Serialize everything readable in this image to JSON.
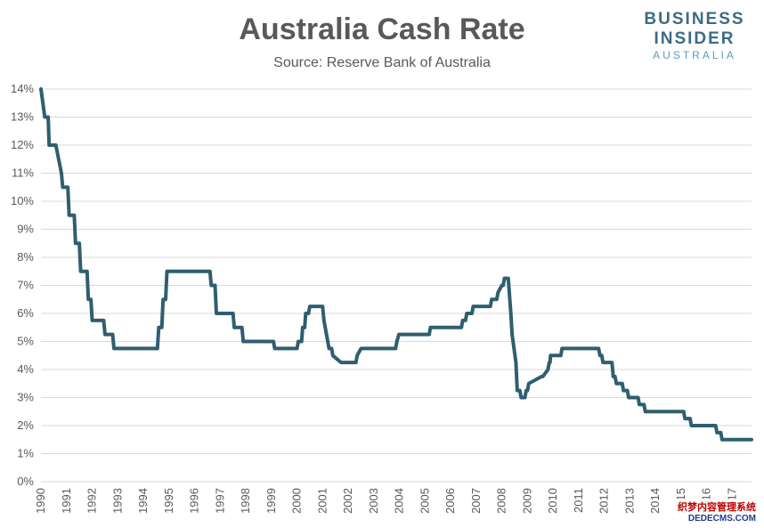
{
  "header": {
    "title": "Australia Cash Rate",
    "subtitle": "Source: Reserve Bank of Australia"
  },
  "logo": {
    "line1": "BUSINESS",
    "line2": "INSIDER",
    "line3": "AUSTRALIA"
  },
  "watermark": {
    "line1": "织梦内容管理系统",
    "line2": "DEDECMS.COM"
  },
  "colors": {
    "line": "#2f5e6f",
    "grid": "#d9d9d9",
    "logo": "#3d6b84"
  },
  "chart_data": {
    "type": "line",
    "title": "Australia Cash Rate",
    "subtitle": "Source: Reserve Bank of Australia",
    "xlabel": "",
    "ylabel": "",
    "xlim": [
      1990,
      2017.75
    ],
    "ylim": [
      0,
      14
    ],
    "y_ticks": [
      "0%",
      "1%",
      "2%",
      "3%",
      "4%",
      "5%",
      "6%",
      "7%",
      "8%",
      "9%",
      "10%",
      "11%",
      "12%",
      "13%",
      "14%"
    ],
    "x_ticks": [
      "1990",
      "1991",
      "1992",
      "1993",
      "1994",
      "1995",
      "1996",
      "1997",
      "1998",
      "1999",
      "2000",
      "2001",
      "2002",
      "2003",
      "2004",
      "2005",
      "2006",
      "2007",
      "2008",
      "2009",
      "2010",
      "2011",
      "2012",
      "2013",
      "2014",
      "2015",
      "2016",
      "2017"
    ],
    "grid": true,
    "legend": "none",
    "series": [
      {
        "x": [
          1990.0,
          1990.15,
          1990.28,
          1990.32,
          1990.58,
          1990.8,
          1990.85,
          1991.05,
          1991.1,
          1991.3,
          1991.35,
          1991.5,
          1991.55,
          1991.8,
          1991.85,
          1991.95,
          1992.0,
          1992.45,
          1992.5,
          1992.8,
          1992.85,
          1994.55,
          1994.6,
          1994.72,
          1994.77,
          1994.87,
          1994.92,
          1995.0,
          1996.6,
          1996.65,
          1996.8,
          1996.85,
          1997.05,
          1997.1,
          1997.5,
          1997.55,
          1997.85,
          1997.9,
          1998.0,
          1999.08,
          1999.13,
          2000.0,
          2000.05,
          2000.18,
          2000.22,
          2000.3,
          2000.34,
          2000.45,
          2000.5,
          2000.62,
          2000.65,
          2001.0,
          2001.05,
          2001.2,
          2001.25,
          2001.35,
          2001.4,
          2001.72,
          2001.77,
          2002.3,
          2002.35,
          2002.5,
          2002.55,
          2003.85,
          2003.9,
          2003.98,
          2004.0,
          2005.16,
          2005.21,
          2006.42,
          2006.47,
          2006.58,
          2006.63,
          2006.83,
          2006.88,
          2007.55,
          2007.6,
          2007.8,
          2007.85,
          2008.0,
          2008.05,
          2008.1,
          2008.2,
          2008.25,
          2008.35,
          2008.4,
          2008.55,
          2008.6,
          2008.7,
          2008.75,
          2008.9,
          2008.95,
          2009.0,
          2009.05,
          2009.55,
          2009.6,
          2009.8,
          2009.85,
          2009.88,
          2009.9,
          2010.15,
          2010.2,
          2010.3,
          2010.35,
          2010.45,
          2010.5,
          2010.75,
          2010.8,
          2011.78,
          2011.83,
          2011.9,
          2011.95,
          2012.3,
          2012.35,
          2012.42,
          2012.47,
          2012.7,
          2012.75,
          2012.9,
          2012.95,
          2013.32,
          2013.37,
          2013.55,
          2013.6,
          2015.1,
          2015.15,
          2015.35,
          2015.4,
          2016.35,
          2016.4,
          2016.55,
          2016.6,
          2017.75
        ],
        "y": [
          14.0,
          13.0,
          13.0,
          12.0,
          12.0,
          11.0,
          10.5,
          10.5,
          9.5,
          9.5,
          8.5,
          8.5,
          7.5,
          7.5,
          6.5,
          6.5,
          5.75,
          5.75,
          5.25,
          5.25,
          4.75,
          4.75,
          5.5,
          5.5,
          6.5,
          6.5,
          7.5,
          7.5,
          7.5,
          7.0,
          7.0,
          6.0,
          6.0,
          6.0,
          6.0,
          5.5,
          5.5,
          5.0,
          5.0,
          5.0,
          4.75,
          4.75,
          5.0,
          5.0,
          5.5,
          5.5,
          6.0,
          6.0,
          6.25,
          6.25,
          6.25,
          6.25,
          5.75,
          5.0,
          4.75,
          4.75,
          4.5,
          4.25,
          4.25,
          4.25,
          4.5,
          4.75,
          4.75,
          4.75,
          5.0,
          5.25,
          5.25,
          5.25,
          5.5,
          5.5,
          5.75,
          5.75,
          6.0,
          6.0,
          6.25,
          6.25,
          6.5,
          6.5,
          6.75,
          7.0,
          7.0,
          7.25,
          7.25,
          7.25,
          6.0,
          5.25,
          4.25,
          3.25,
          3.25,
          3.0,
          3.0,
          3.25,
          3.25,
          3.5,
          3.75,
          3.75,
          4.0,
          4.25,
          4.25,
          4.5,
          4.5,
          4.5,
          4.5,
          4.75,
          4.75,
          4.75,
          4.75,
          4.75,
          4.75,
          4.5,
          4.5,
          4.25,
          4.25,
          3.75,
          3.75,
          3.5,
          3.5,
          3.25,
          3.25,
          3.0,
          3.0,
          2.75,
          2.75,
          2.5,
          2.5,
          2.25,
          2.25,
          2.0,
          2.0,
          1.75,
          1.75,
          1.5,
          1.5
        ],
        "interp_x": [
          1990.0,
          1990.15,
          1990.28,
          1990.32,
          1990.58,
          1990.8,
          1990.85,
          1991.05,
          1991.1,
          1991.3,
          1991.35,
          1991.5,
          1991.55,
          1991.8,
          1991.85,
          1991.95,
          1992.0,
          1992.45,
          1992.5,
          1992.8,
          1992.85,
          1994.55,
          1994.6,
          1994.72,
          1994.77,
          1994.87,
          1994.92,
          1995.0,
          1996.6,
          1996.65,
          1996.8,
          1996.85,
          1997.05,
          1997.1,
          1997.5,
          1997.55,
          1997.85,
          1997.9,
          1998.0,
          1999.08,
          1999.13,
          2000.0,
          2000.05,
          2000.18,
          2000.22,
          2000.3,
          2000.34,
          2000.45,
          2000.5,
          2000.62,
          2000.65,
          2001.0,
          2001.05,
          2001.2,
          2001.25,
          2001.35,
          2001.4,
          2001.72,
          2001.77,
          2002.3,
          2002.35,
          2002.5,
          2002.55,
          2003.85,
          2003.9,
          2003.98,
          2004.0,
          2005.16,
          2005.21,
          2006.42,
          2006.47,
          2006.58,
          2006.63,
          2006.83,
          2006.88,
          2007.55,
          2007.6,
          2007.8,
          2007.85,
          2008.0,
          2008.05,
          2008.1,
          2008.2,
          2008.25,
          2008.35,
          2008.4,
          2008.55,
          2008.6,
          2008.7,
          2008.75,
          2008.9,
          2008.95,
          2009.0,
          2009.05,
          2009.55,
          2009.6,
          2009.8,
          2009.85,
          2009.88,
          2009.9,
          2010.15,
          2010.2,
          2010.3,
          2010.35,
          2010.45,
          2010.5,
          2010.75,
          2010.8,
          2011.78,
          2011.83,
          2011.9,
          2011.95,
          2012.3,
          2012.35,
          2012.42,
          2012.47,
          2012.7,
          2012.75,
          2012.9,
          2012.95,
          2013.32,
          2013.37,
          2013.55,
          2013.6,
          2015.1,
          2015.15,
          2015.35,
          2015.4,
          2016.35,
          2016.4,
          2016.55,
          2016.6,
          2017.75
        ]
      }
    ]
  }
}
